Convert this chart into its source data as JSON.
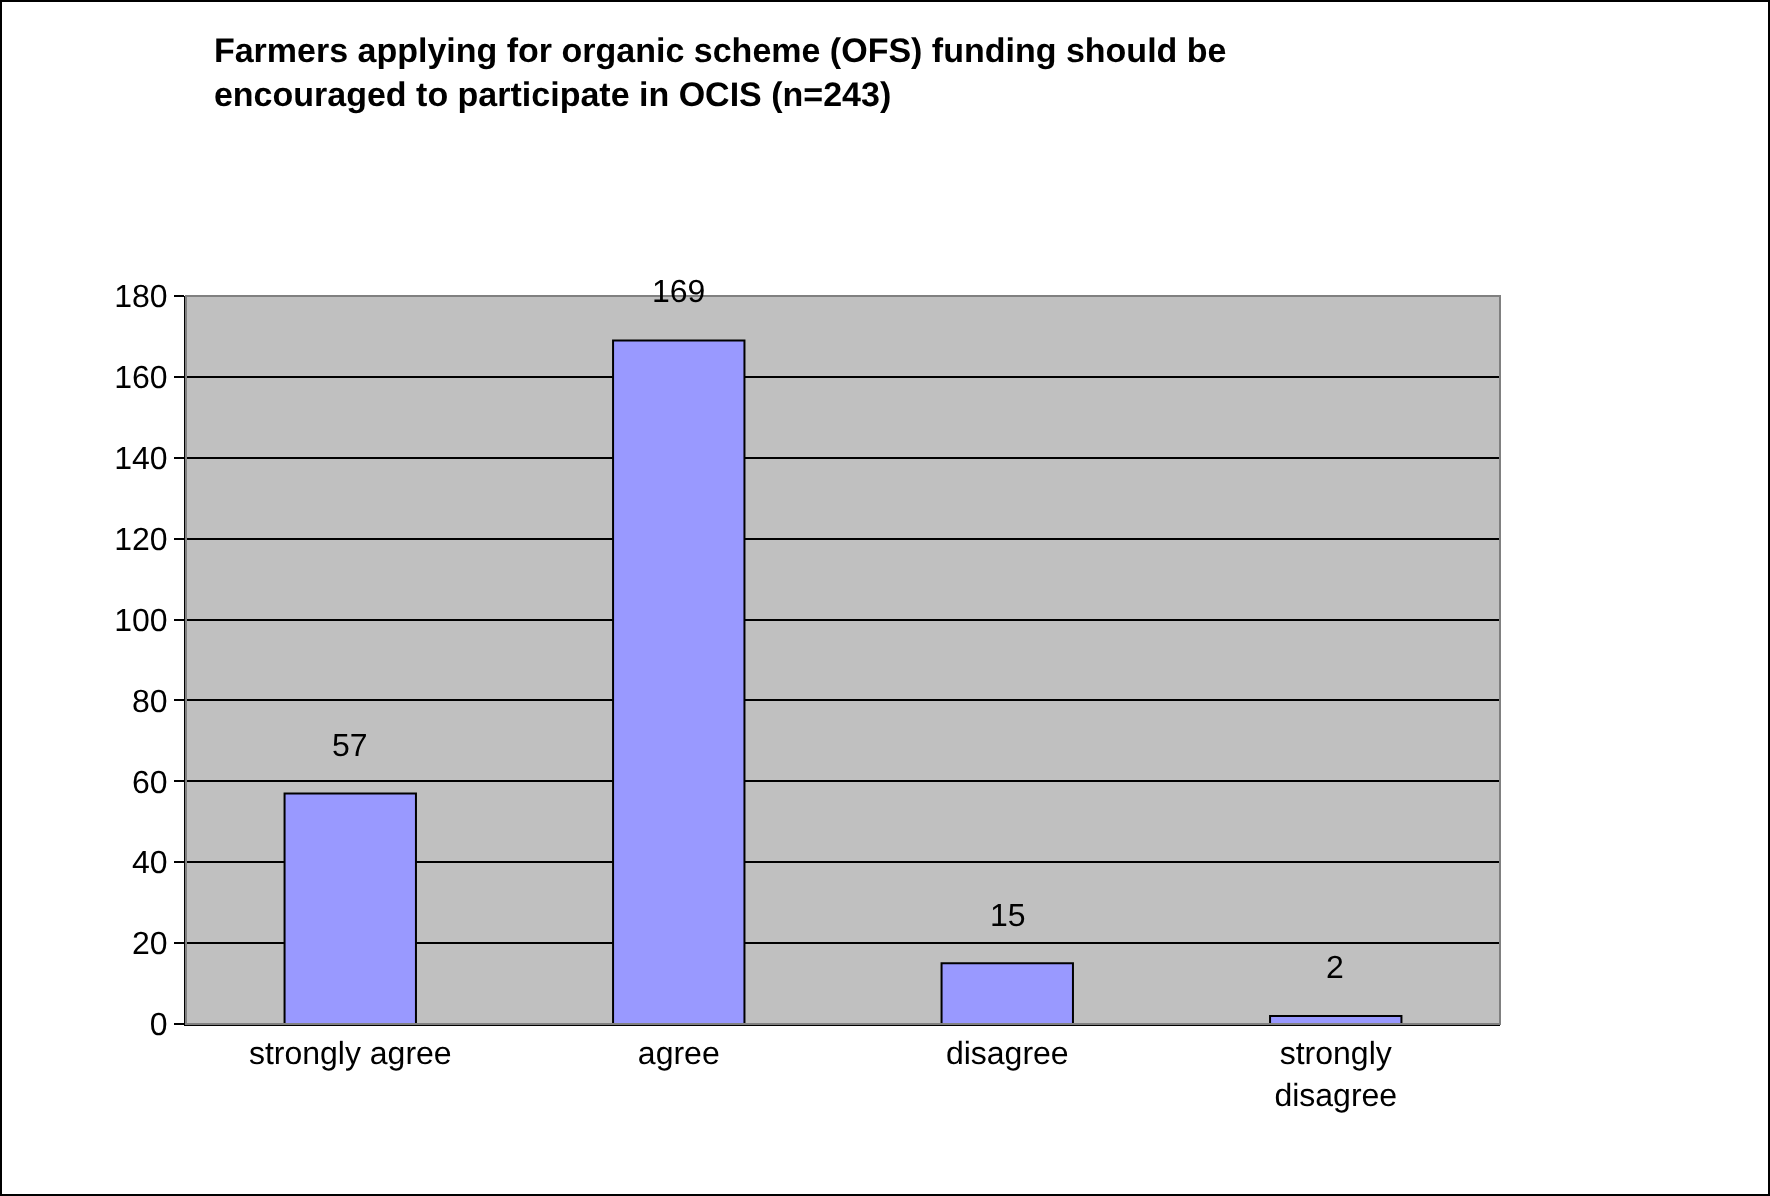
{
  "chart_data": {
    "type": "bar",
    "title": "Farmers applying for organic scheme (OFS) funding should be\nencouraged to participate in OCIS (n=243)",
    "categories": [
      "strongly agree",
      "agree",
      "disagree",
      "strongly disagree"
    ],
    "values": [
      57,
      169,
      15,
      2
    ],
    "color": "#9999ff",
    "ylim": [
      0,
      180
    ],
    "yticks": [
      0,
      20,
      40,
      60,
      80,
      100,
      120,
      140,
      160,
      180
    ],
    "grid": "y",
    "data_labels": true,
    "legend": false
  }
}
